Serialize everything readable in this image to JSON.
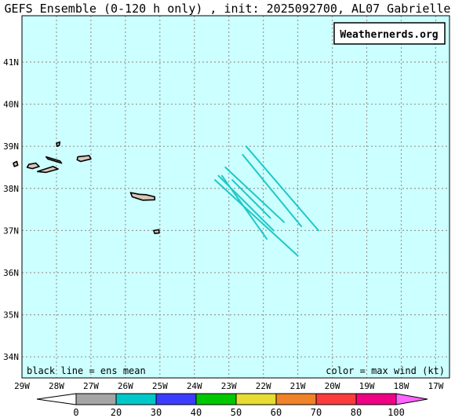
{
  "title": "GEFS Ensemble (0-120 h only) , init: 2025092700, AL07 Gabrielle",
  "brand": "Weathernerds.org",
  "footer_left": "black line = ens mean",
  "footer_right": "color = max wind (kt)",
  "lat_labels": [
    "41N",
    "40N",
    "39N",
    "38N",
    "37N",
    "36N",
    "35N",
    "34N"
  ],
  "lon_labels": [
    "29W",
    "28W",
    "27W",
    "26W",
    "25W",
    "24W",
    "23W",
    "22W",
    "21W",
    "20W",
    "19W",
    "18W",
    "17W"
  ],
  "colorbar": {
    "ticks": [
      "0",
      "20",
      "30",
      "40",
      "50",
      "60",
      "70",
      "80",
      "100"
    ],
    "colors": [
      "#a5a5a5",
      "#00c8c8",
      "#3c3cff",
      "#00c800",
      "#e6dc32",
      "#f08228",
      "#fa3c3c",
      "#f00082",
      "#ff64ff"
    ]
  },
  "colors": {
    "ocean": "#ccffff",
    "track": "#1ec8c8",
    "land": "#d8c8b8",
    "grid": "#9a9a9a"
  },
  "tracks": [
    {
      "points": [
        [
          -22.5,
          39.0
        ],
        [
          -20.4,
          37.0
        ]
      ]
    },
    {
      "points": [
        [
          -22.6,
          38.8
        ],
        [
          -20.9,
          37.1
        ]
      ]
    },
    {
      "points": [
        [
          -23.1,
          38.5
        ],
        [
          -21.4,
          37.2
        ]
      ]
    },
    {
      "points": [
        [
          -23.3,
          38.3
        ],
        [
          -21.7,
          37.0
        ]
      ]
    },
    {
      "points": [
        [
          -23.2,
          38.3
        ],
        [
          -21.9,
          36.8
        ]
      ]
    },
    {
      "points": [
        [
          -23.4,
          38.2
        ],
        [
          -21.0,
          36.4
        ]
      ]
    },
    {
      "points": [
        [
          -22.9,
          38.2
        ],
        [
          -21.8,
          37.3
        ]
      ]
    }
  ],
  "islands": [
    {
      "name": "Flores",
      "points": [
        [
          -29.25,
          38.6
        ],
        [
          -29.15,
          38.64
        ],
        [
          -29.12,
          38.55
        ],
        [
          -29.22,
          38.52
        ]
      ]
    },
    {
      "name": "Corvo",
      "points": [
        [
          -28.0,
          39.07
        ],
        [
          -27.9,
          39.1
        ],
        [
          -27.92,
          39.02
        ],
        [
          -27.98,
          39.0
        ]
      ]
    },
    {
      "name": "Faial",
      "points": [
        [
          -28.8,
          38.57
        ],
        [
          -28.6,
          38.6
        ],
        [
          -28.5,
          38.52
        ],
        [
          -28.7,
          38.47
        ],
        [
          -28.85,
          38.5
        ]
      ]
    },
    {
      "name": "Pico",
      "points": [
        [
          -28.55,
          38.4
        ],
        [
          -28.1,
          38.52
        ],
        [
          -27.95,
          38.46
        ],
        [
          -28.3,
          38.38
        ]
      ]
    },
    {
      "name": "Sao Jorge",
      "points": [
        [
          -28.3,
          38.75
        ],
        [
          -27.9,
          38.65
        ],
        [
          -27.85,
          38.6
        ],
        [
          -28.25,
          38.7
        ]
      ]
    },
    {
      "name": "Terceira",
      "points": [
        [
          -27.38,
          38.75
        ],
        [
          -27.05,
          38.78
        ],
        [
          -27.0,
          38.7
        ],
        [
          -27.3,
          38.64
        ],
        [
          -27.4,
          38.68
        ]
      ]
    },
    {
      "name": "Sao Miguel",
      "points": [
        [
          -25.85,
          37.9
        ],
        [
          -25.6,
          37.86
        ],
        [
          -25.4,
          37.85
        ],
        [
          -25.15,
          37.8
        ],
        [
          -25.15,
          37.73
        ],
        [
          -25.5,
          37.72
        ],
        [
          -25.8,
          37.8
        ]
      ]
    },
    {
      "name": "Santa Maria",
      "points": [
        [
          -25.18,
          37.0
        ],
        [
          -25.03,
          37.02
        ],
        [
          -25.02,
          36.94
        ],
        [
          -25.15,
          36.93
        ]
      ]
    }
  ]
}
